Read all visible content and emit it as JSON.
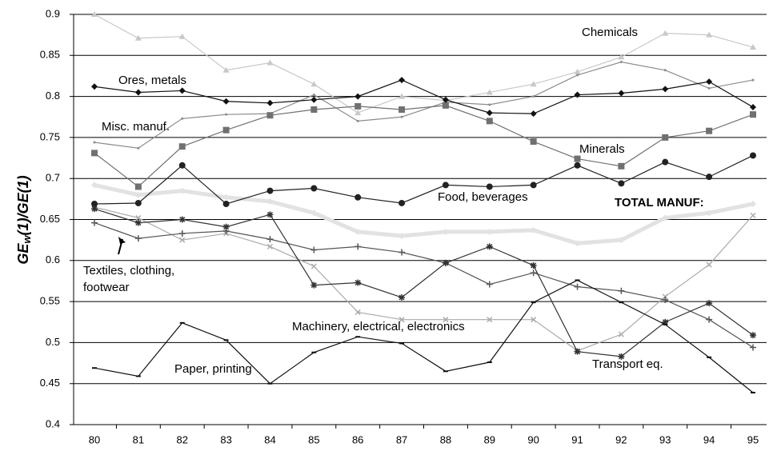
{
  "chart_data": {
    "type": "line",
    "y_label": {
      "main": "GE",
      "sub": "w",
      "rest": "(1)/GE(1)"
    },
    "categories": [
      "80",
      "81",
      "82",
      "83",
      "84",
      "85",
      "86",
      "87",
      "88",
      "89",
      "90",
      "91",
      "92",
      "93",
      "94",
      "95"
    ],
    "ylim": [
      0.4,
      0.9
    ],
    "yticks": [
      0.4,
      0.45,
      0.5,
      0.55,
      0.6,
      0.65,
      0.7,
      0.75,
      0.8,
      0.85,
      0.9
    ],
    "grid": true,
    "series": [
      {
        "name": "Chemicals",
        "color": "#c8c8c8",
        "marker": "triangle",
        "values": [
          0.9,
          0.871,
          0.873,
          0.832,
          0.841,
          0.815,
          0.78,
          0.8,
          0.795,
          0.805,
          0.815,
          0.83,
          0.848,
          0.877,
          0.875,
          0.86
        ]
      },
      {
        "name": "Ores, metals",
        "color": "#111111",
        "marker": "diamond",
        "values": [
          0.812,
          0.805,
          0.807,
          0.794,
          0.792,
          0.796,
          0.8,
          0.82,
          0.796,
          0.78,
          0.779,
          0.802,
          0.804,
          0.809,
          0.818,
          0.787
        ]
      },
      {
        "name": "Misc. manuf.",
        "color": "#8c8c8c",
        "marker": "dot",
        "values": [
          0.744,
          0.737,
          0.773,
          0.778,
          0.779,
          0.802,
          0.77,
          0.775,
          0.793,
          0.79,
          0.8,
          0.826,
          0.842,
          0.832,
          0.81,
          0.82
        ]
      },
      {
        "name": "Minerals",
        "color": "#707070",
        "marker": "square",
        "values": [
          0.731,
          0.69,
          0.739,
          0.759,
          0.777,
          0.784,
          0.788,
          0.784,
          0.789,
          0.77,
          0.745,
          0.724,
          0.715,
          0.75,
          0.758,
          0.778
        ]
      },
      {
        "name": "Food, beverages",
        "color": "#222222",
        "marker": "circle",
        "values": [
          0.669,
          0.67,
          0.716,
          0.669,
          0.685,
          0.688,
          0.677,
          0.67,
          0.692,
          0.69,
          0.692,
          0.716,
          0.694,
          0.72,
          0.702,
          0.728
        ]
      },
      {
        "name": "TOTAL MANUF:",
        "color": "#e2e2e2",
        "marker": "diamond",
        "width": 5,
        "bold": true,
        "values": [
          0.692,
          0.68,
          0.685,
          0.677,
          0.672,
          0.658,
          0.635,
          0.63,
          0.635,
          0.635,
          0.637,
          0.621,
          0.625,
          0.652,
          0.658,
          0.669
        ]
      },
      {
        "name": "Textiles, clothing, footwear",
        "color": "#555555",
        "marker": "plus",
        "values": [
          0.646,
          0.627,
          0.633,
          0.636,
          0.626,
          0.613,
          0.617,
          0.61,
          0.597,
          0.571,
          0.585,
          0.568,
          0.563,
          0.552,
          0.528,
          0.494
        ]
      },
      {
        "name": "Machinery, electrical, electronics",
        "color": "#aaaaaa",
        "marker": "x",
        "values": [
          0.665,
          0.652,
          0.625,
          0.633,
          0.617,
          0.593,
          0.537,
          0.528,
          0.528,
          0.528,
          0.528,
          0.49,
          0.51,
          0.556,
          0.595,
          0.655
        ]
      },
      {
        "name": "Transport eq.",
        "color": "#333333",
        "marker": "star",
        "values": [
          0.663,
          0.646,
          0.65,
          0.641,
          0.656,
          0.57,
          0.573,
          0.555,
          0.597,
          0.617,
          0.594,
          0.489,
          0.483,
          0.525,
          0.548,
          0.509
        ]
      },
      {
        "name": "Paper, printing",
        "color": "#111111",
        "marker": "dash",
        "values": [
          0.469,
          0.459,
          0.524,
          0.503,
          0.45,
          0.488,
          0.507,
          0.499,
          0.465,
          0.476,
          0.549,
          0.576,
          0.549,
          0.522,
          0.482,
          0.439
        ]
      }
    ]
  }
}
